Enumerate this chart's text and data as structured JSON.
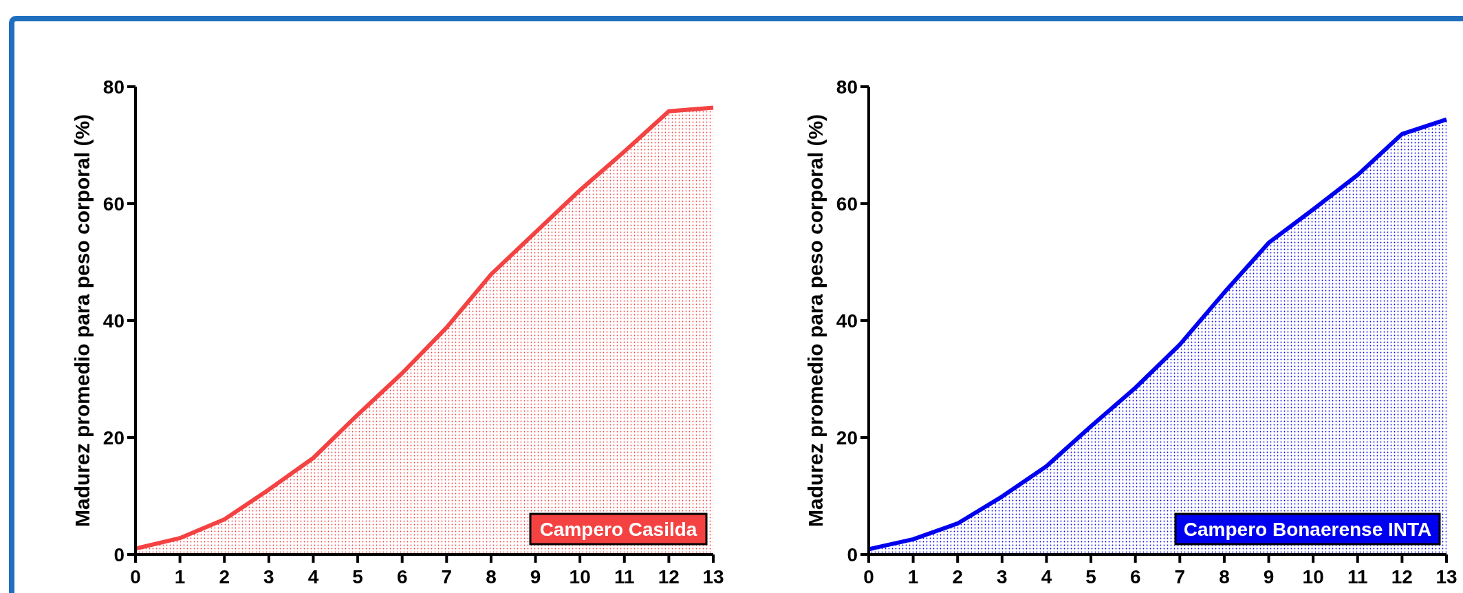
{
  "chart_data": [
    {
      "type": "area",
      "ylabel": "Madurez promedio para peso corporal (%)",
      "x": [
        0,
        1,
        2,
        3,
        4,
        5,
        6,
        7,
        8,
        9,
        10,
        11,
        12,
        13
      ],
      "xlim": [
        0,
        13
      ],
      "xticks": [
        0,
        1,
        2,
        3,
        4,
        5,
        6,
        7,
        8,
        9,
        10,
        11,
        12,
        13
      ],
      "ylim": [
        0,
        80
      ],
      "yticks": [
        0,
        20,
        40,
        60,
        80
      ],
      "legend": "bottom right",
      "series": [
        {
          "name": "Campero Casilda",
          "color": "#f44242",
          "values": [
            1.0,
            2.8,
            6.0,
            11.1,
            16.5,
            23.9,
            31.0,
            38.8,
            47.9,
            55.1,
            62.3,
            68.9,
            75.8,
            76.4
          ]
        }
      ]
    },
    {
      "type": "area",
      "ylabel": "Madurez promedio para peso corporal (%)",
      "x": [
        0,
        1,
        2,
        3,
        4,
        5,
        6,
        7,
        8,
        9,
        10,
        11,
        12,
        13
      ],
      "xlim": [
        0,
        13
      ],
      "xticks": [
        0,
        1,
        2,
        3,
        4,
        5,
        6,
        7,
        8,
        9,
        10,
        11,
        12,
        13
      ],
      "ylim": [
        0,
        80
      ],
      "yticks": [
        0,
        20,
        40,
        60,
        80
      ],
      "legend": "bottom right",
      "series": [
        {
          "name": "Campero Bonaerense INTA",
          "color": "#0000f0",
          "values": [
            0.9,
            2.6,
            5.3,
            9.9,
            15.1,
            21.9,
            28.5,
            35.9,
            44.8,
            53.3,
            59.0,
            64.9,
            71.9,
            74.4
          ]
        }
      ]
    }
  ]
}
